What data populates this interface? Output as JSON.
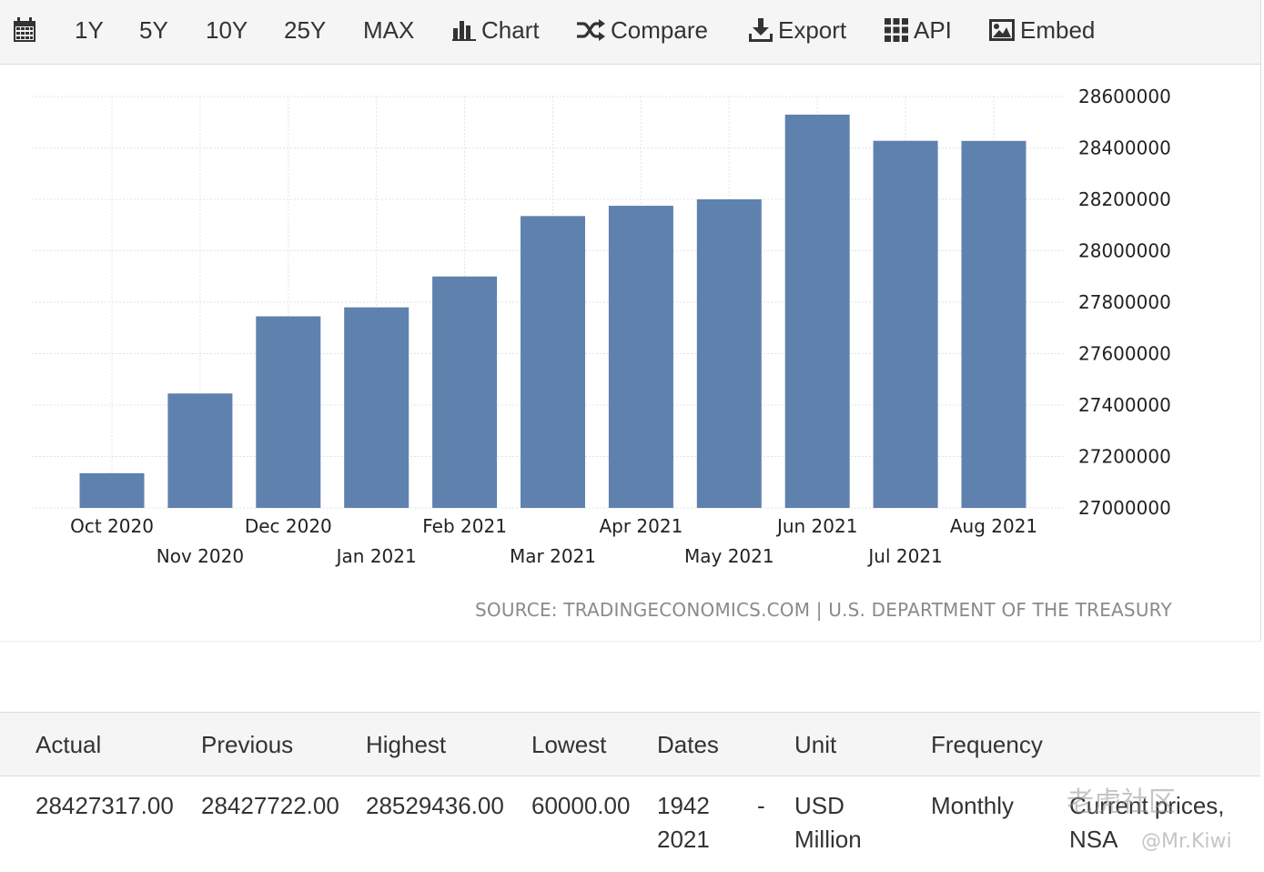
{
  "toolbar": {
    "icons": [
      "calendar-icon",
      "bar-chart-icon",
      "shuffle-icon",
      "download-icon",
      "grid-icon",
      "image-icon"
    ],
    "range_1y": "1Y",
    "range_5y": "5Y",
    "range_10y": "10Y",
    "range_25y": "25Y",
    "range_max": "MAX",
    "chart_label": "Chart",
    "compare_label": "Compare",
    "export_label": "Export",
    "api_label": "API",
    "embed_label": "Embed"
  },
  "chart_data": {
    "type": "bar",
    "categories": [
      "Oct 2020",
      "Nov 2020",
      "Dec 2020",
      "Jan 2021",
      "Feb 2021",
      "Mar 2021",
      "Apr 2021",
      "May 2021",
      "Jun 2021",
      "Jul 2021",
      "Aug 2021"
    ],
    "values": [
      27135000,
      27445000,
      27745000,
      27780000,
      27900000,
      28135000,
      28175000,
      28200000,
      28529436,
      28427722,
      28427317
    ],
    "y_ticks": [
      "27000000",
      "27200000",
      "27400000",
      "27600000",
      "27800000",
      "28000000",
      "28200000",
      "28400000",
      "28600000"
    ],
    "ylim": [
      27000000,
      28600000
    ],
    "y_axis_side": "right",
    "bar_color": "#5f81ae",
    "grid": true,
    "source": "SOURCE: TRADINGECONOMICS.COM | U.S. DEPARTMENT OF THE TREASURY"
  },
  "table": {
    "headers": [
      "Actual",
      "Previous",
      "Highest",
      "Lowest",
      "Dates",
      "Unit",
      "Frequency"
    ],
    "actual": "28427317.00",
    "previous": "28427722.00",
    "highest": "28529436.00",
    "lowest": "60000.00",
    "dates_start": "1942",
    "dates_sep": "-",
    "dates_end": "2021",
    "unit_line1": "USD",
    "unit_line2": "Million",
    "frequency": "Monthly",
    "extra_line1": "Current prices,",
    "extra_line2": "NSA"
  },
  "watermark": {
    "text": "老虎社区",
    "handle": "@Mr.Kiwi"
  }
}
